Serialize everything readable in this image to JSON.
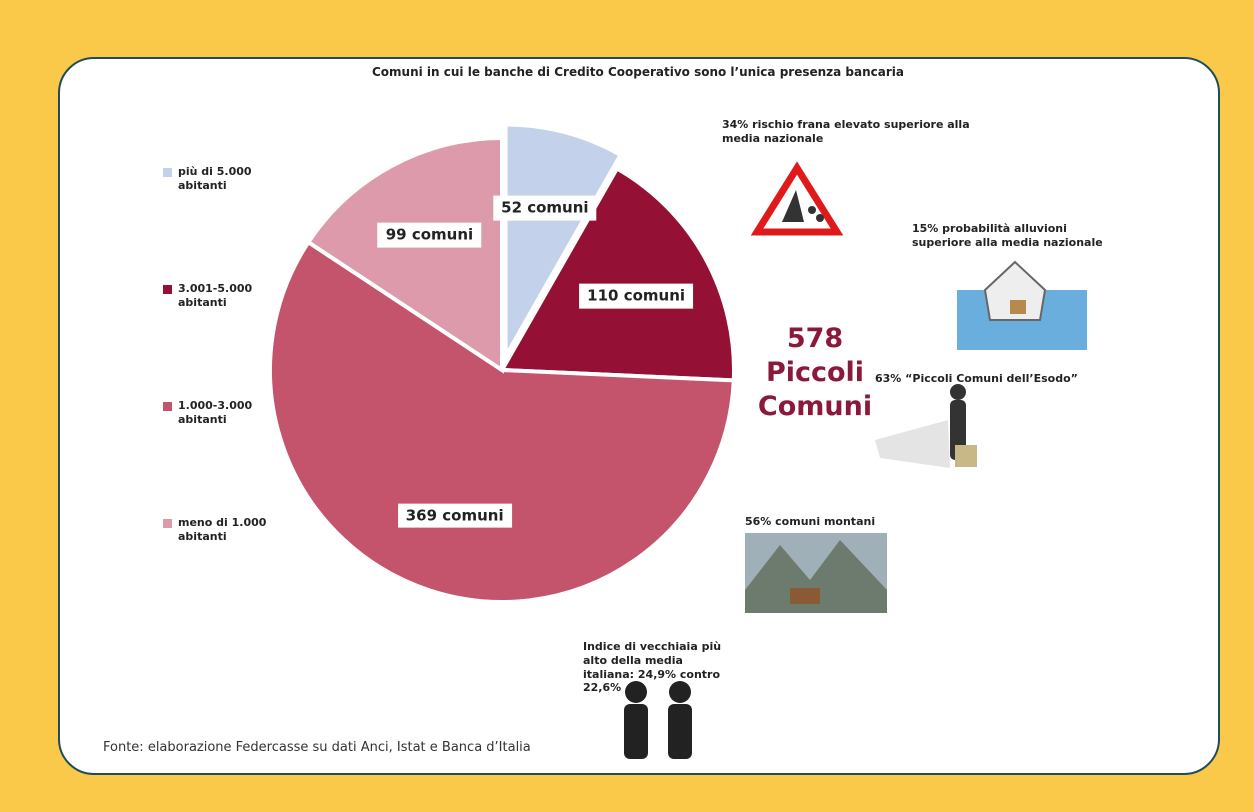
{
  "chart_data": {
    "type": "pie",
    "title": "Comuni in cui le banche di Credito Cooperativo sono l’unica presenza bancaria",
    "categories": [
      "più di 5.000 abitanti",
      "3.001-5.000 abitanti",
      "1.000-3.000 abitanti",
      "meno di 1.000 abitanti"
    ],
    "values": [
      52,
      110,
      369,
      99
    ],
    "value_labels": [
      "52 comuni",
      "110 comuni",
      "369 comuni",
      "99 comuni"
    ],
    "colors": [
      "#c3d2ea",
      "#941034",
      "#c4546c",
      "#dc9aaa"
    ],
    "exploded": [
      true,
      false,
      false,
      false
    ],
    "center_label": "578 Piccoli Comuni",
    "annotations": [
      "34% rischio frana elevato superiore alla media nazionale",
      "15% probabilità alluvioni superiore alla media nazionale",
      "63% “Piccoli Comuni dell’Esodo”",
      "56% comuni montani",
      "Indice di vecchiaia più alto della media italiana: 24,9% contro 22,6%"
    ],
    "source": "Fonte: elaborazione Federcasse su dati Anci, Istat e Banca d’Italia"
  }
}
